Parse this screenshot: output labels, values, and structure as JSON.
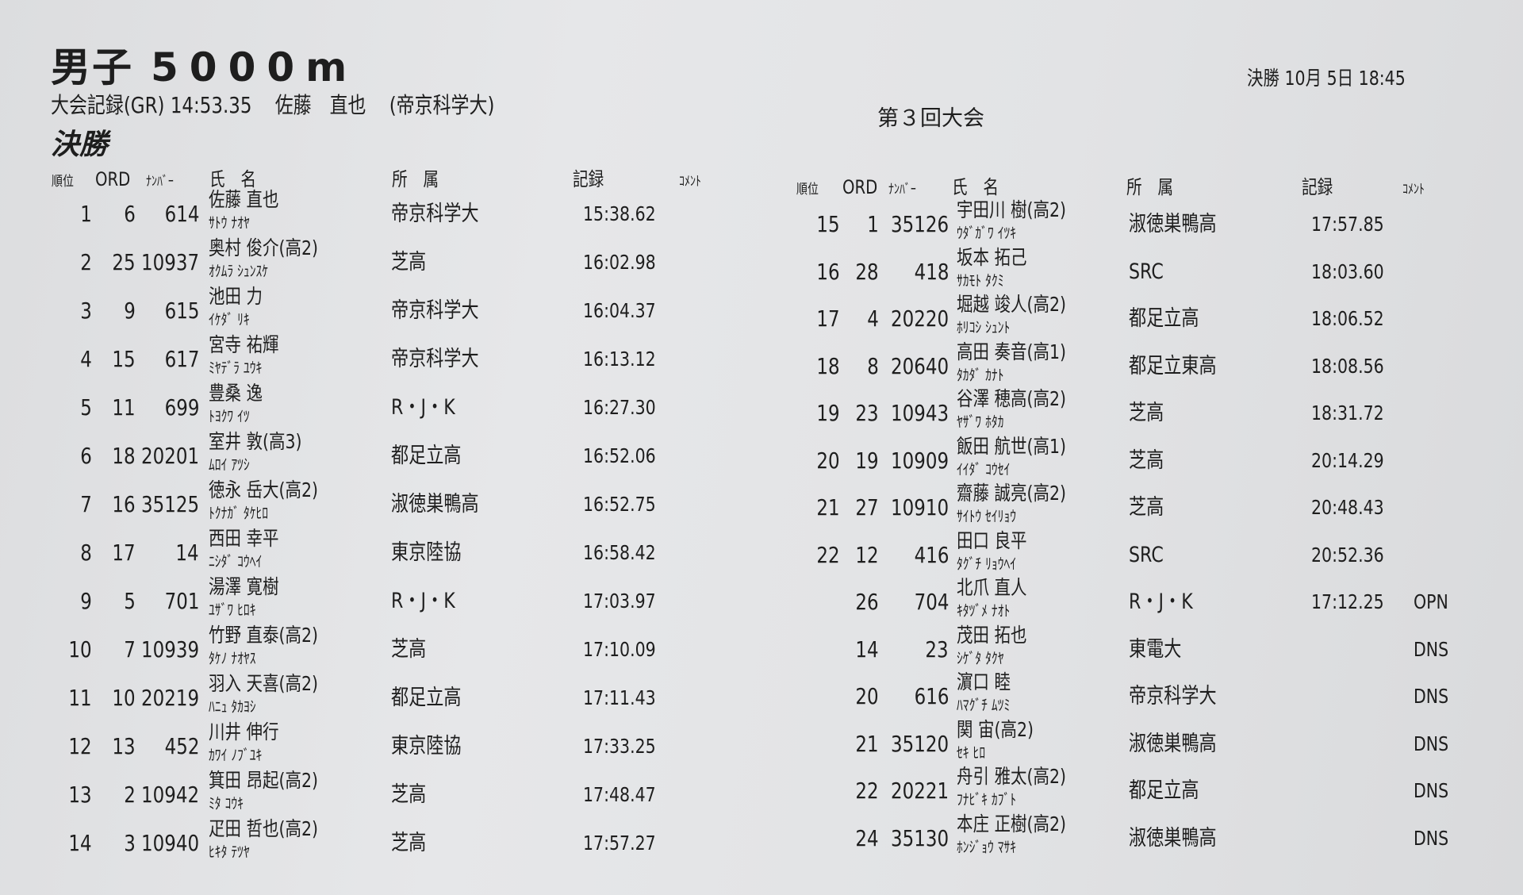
{
  "header": {
    "event": "男子",
    "distance": "5000m",
    "record_label": "大会記録(GR)",
    "record_time": "14:53.35",
    "record_holder": "佐藤　直也",
    "record_team": "(帝京科学大)",
    "meet": "第３回大会",
    "datetime": "決勝 10月 5日 18:45",
    "round": "決勝"
  },
  "columns": {
    "rank": "順位",
    "ord": "ORD",
    "number": "ﾅﾝﾊﾞｰ",
    "name": "氏　名",
    "team": "所　属",
    "time": "記録",
    "comment": "ｺﾒﾝﾄ"
  },
  "left_rows": [
    {
      "rank": "1",
      "ord": "6",
      "number": "614",
      "name": "佐藤 直也",
      "kana": "ｻﾄｳ ﾅｵﾔ",
      "team": "帝京科学大",
      "time": "15:38.62",
      "comment": ""
    },
    {
      "rank": "2",
      "ord": "25",
      "number": "10937",
      "name": "奥村 俊介(高2)",
      "kana": "ｵｸﾑﾗ ｼｭﾝｽｹ",
      "team": "芝高",
      "time": "16:02.98",
      "comment": ""
    },
    {
      "rank": "3",
      "ord": "9",
      "number": "615",
      "name": "池田 力",
      "kana": "ｲｹﾀﾞ ﾘｷ",
      "team": "帝京科学大",
      "time": "16:04.37",
      "comment": ""
    },
    {
      "rank": "4",
      "ord": "15",
      "number": "617",
      "name": "宮寺 祐輝",
      "kana": "ﾐﾔﾃﾞﾗ ﾕｳｷ",
      "team": "帝京科学大",
      "time": "16:13.12",
      "comment": ""
    },
    {
      "rank": "5",
      "ord": "11",
      "number": "699",
      "name": "豊桑 逸",
      "kana": "ﾄﾖｸﾜ ｲﾂ",
      "team": "R・J・K",
      "time": "16:27.30",
      "comment": ""
    },
    {
      "rank": "6",
      "ord": "18",
      "number": "20201",
      "name": "室井 敦(高3)",
      "kana": "ﾑﾛｲ ｱﾂｼ",
      "team": "都足立高",
      "time": "16:52.06",
      "comment": ""
    },
    {
      "rank": "7",
      "ord": "16",
      "number": "35125",
      "name": "徳永 岳大(高2)",
      "kana": "ﾄｸﾅｶﾞ ﾀｹﾋﾛ",
      "team": "淑徳巣鴨高",
      "time": "16:52.75",
      "comment": ""
    },
    {
      "rank": "8",
      "ord": "17",
      "number": "14",
      "name": "西田 幸平",
      "kana": "ﾆｼﾀﾞ ｺｳﾍｲ",
      "team": "東京陸協",
      "time": "16:58.42",
      "comment": ""
    },
    {
      "rank": "9",
      "ord": "5",
      "number": "701",
      "name": "湯澤 寛樹",
      "kana": "ﾕｻﾞﾜ ﾋﾛｷ",
      "team": "R・J・K",
      "time": "17:03.97",
      "comment": ""
    },
    {
      "rank": "10",
      "ord": "7",
      "number": "10939",
      "name": "竹野 直泰(高2)",
      "kana": "ﾀｹﾉ ﾅｵﾔｽ",
      "team": "芝高",
      "time": "17:10.09",
      "comment": ""
    },
    {
      "rank": "11",
      "ord": "10",
      "number": "20219",
      "name": "羽入 天喜(高2)",
      "kana": "ﾊﾆｭ ﾀｶﾖｼ",
      "team": "都足立高",
      "time": "17:11.43",
      "comment": ""
    },
    {
      "rank": "12",
      "ord": "13",
      "number": "452",
      "name": "川井 伸行",
      "kana": "ｶﾜｲ ﾉﾌﾞﾕｷ",
      "team": "東京陸協",
      "time": "17:33.25",
      "comment": ""
    },
    {
      "rank": "13",
      "ord": "2",
      "number": "10942",
      "name": "箕田 昂起(高2)",
      "kana": "ﾐﾀ ｺｳｷ",
      "team": "芝高",
      "time": "17:48.47",
      "comment": ""
    },
    {
      "rank": "14",
      "ord": "3",
      "number": "10940",
      "name": "疋田 哲也(高2)",
      "kana": "ﾋｷﾀ ﾃﾂﾔ",
      "team": "芝高",
      "time": "17:57.27",
      "comment": ""
    }
  ],
  "right_rows": [
    {
      "rank": "15",
      "ord": "1",
      "number": "35126",
      "name": "宇田川 樹(高2)",
      "kana": "ｳﾀﾞｶﾞﾜ ｲﾂｷ",
      "team": "淑徳巣鴨高",
      "time": "17:57.85",
      "comment": ""
    },
    {
      "rank": "16",
      "ord": "28",
      "number": "418",
      "name": "坂本 拓己",
      "kana": "ｻｶﾓﾄ ﾀｸﾐ",
      "team": "SRC",
      "time": "18:03.60",
      "comment": ""
    },
    {
      "rank": "17",
      "ord": "4",
      "number": "20220",
      "name": "堀越 竣人(高2)",
      "kana": "ﾎﾘｺｼ ｼｭﾝﾄ",
      "team": "都足立高",
      "time": "18:06.52",
      "comment": ""
    },
    {
      "rank": "18",
      "ord": "8",
      "number": "20640",
      "name": "高田 奏音(高1)",
      "kana": "ﾀｶﾀﾞ ｶﾅﾄ",
      "team": "都足立東高",
      "time": "18:08.56",
      "comment": ""
    },
    {
      "rank": "19",
      "ord": "23",
      "number": "10943",
      "name": "谷澤 穂高(高2)",
      "kana": "ﾔｻﾞﾜ ﾎﾀｶ",
      "team": "芝高",
      "time": "18:31.72",
      "comment": ""
    },
    {
      "rank": "20",
      "ord": "19",
      "number": "10909",
      "name": "飯田 航世(高1)",
      "kana": "ｲｲﾀﾞ ｺｳｾｲ",
      "team": "芝高",
      "time": "20:14.29",
      "comment": ""
    },
    {
      "rank": "21",
      "ord": "27",
      "number": "10910",
      "name": "齋藤 誠亮(高2)",
      "kana": "ｻｲﾄｳ ｾｲﾘｮｳ",
      "team": "芝高",
      "time": "20:48.43",
      "comment": ""
    },
    {
      "rank": "22",
      "ord": "12",
      "number": "416",
      "name": "田口 良平",
      "kana": "ﾀｸﾞﾁ ﾘｮｳﾍｲ",
      "team": "SRC",
      "time": "20:52.36",
      "comment": ""
    },
    {
      "rank": "",
      "ord": "26",
      "number": "704",
      "name": "北爪 直人",
      "kana": "ｷﾀﾂﾞﾒ ﾅｵﾄ",
      "team": "R・J・K",
      "time": "17:12.25",
      "comment": "OPN"
    },
    {
      "rank": "",
      "ord": "14",
      "number": "23",
      "name": "茂田 拓也",
      "kana": "ｼｹﾞﾀ ﾀｸﾔ",
      "team": "東電大",
      "time": "",
      "comment": "DNS"
    },
    {
      "rank": "",
      "ord": "20",
      "number": "616",
      "name": "濵口 睦",
      "kana": "ﾊﾏｸﾞﾁ ﾑﾂﾐ",
      "team": "帝京科学大",
      "time": "",
      "comment": "DNS"
    },
    {
      "rank": "",
      "ord": "21",
      "number": "35120",
      "name": "関 宙(高2)",
      "kana": "ｾｷ ﾋﾛ",
      "team": "淑徳巣鴨高",
      "time": "",
      "comment": "DNS"
    },
    {
      "rank": "",
      "ord": "22",
      "number": "20221",
      "name": "舟引 雅太(高2)",
      "kana": "ﾌﾅﾋﾞｷ ｶﾌﾞﾄ",
      "team": "都足立高",
      "time": "",
      "comment": "DNS"
    },
    {
      "rank": "",
      "ord": "24",
      "number": "35130",
      "name": "本庄 正樹(高2)",
      "kana": "ﾎﾝｼﾞｮｳ ﾏｻｷ",
      "team": "淑徳巣鴨高",
      "time": "",
      "comment": "DNS"
    }
  ]
}
